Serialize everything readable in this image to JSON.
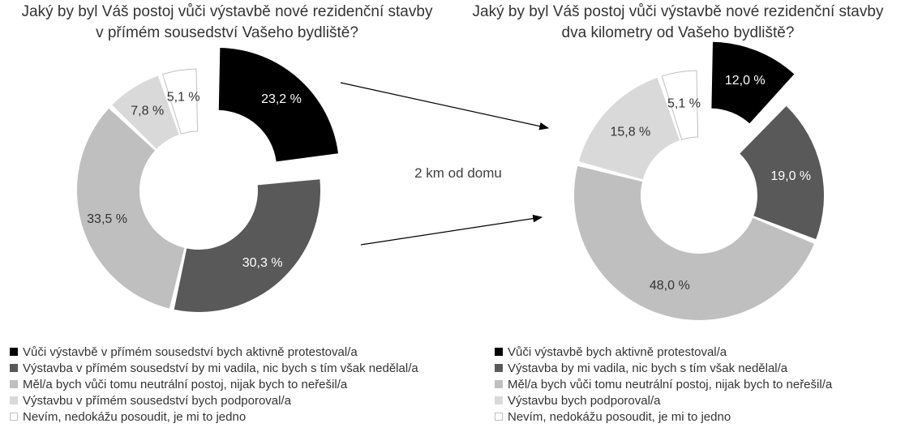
{
  "chart_data": [
    {
      "type": "donut",
      "title": "Jaký by byl Váš postoj vůči výstavbě nové rezidenční stavby\nv přímém sousedství Vašeho bydliště?",
      "slices": [
        {
          "label": "Vůči výstavbě v přímém sousedství bych aktivně protestoval/a",
          "value": 23.2,
          "value_label": "23,2 %",
          "color": "#000000",
          "exploded": true
        },
        {
          "label": "Výstavba v přímém sousedství by mi vadila, nic bych s tím však nedělal/a",
          "value": 30.3,
          "value_label": "30,3 %",
          "color": "#595959"
        },
        {
          "label": "Měl/a bych vůči tomu neutrální postoj, nijak bych to neřešil/a",
          "value": 33.5,
          "value_label": "33,5 %",
          "color": "#bfbfbf"
        },
        {
          "label": "Výstavbu v přímém sousedství bych podporoval/a",
          "value": 7.8,
          "value_label": "7,8 %",
          "color": "#d9d9d9"
        },
        {
          "label": "Nevím, nedokážu posoudit, je mi to jedno",
          "value": 5.1,
          "value_label": "5,1 %",
          "color": "#ffffff"
        }
      ]
    },
    {
      "type": "donut",
      "title": "Jaký by byl Váš postoj vůči výstavbě nové rezidenční stavby\ndva kilometry od Vašeho bydliště?",
      "slices": [
        {
          "label": "Vůči výstavbě bych aktivně protestoval/a",
          "value": 12.0,
          "value_label": "12,0 %",
          "color": "#000000",
          "exploded": true
        },
        {
          "label": "Výstavba by mi vadila, nic bych s tím však nedělal/a",
          "value": 19.0,
          "value_label": "19,0 %",
          "color": "#595959"
        },
        {
          "label": "Měl/a bych vůči tomu neutrální postoj, nijak bych to neřešil/a",
          "value": 48.0,
          "value_label": "48,0 %",
          "color": "#bfbfbf"
        },
        {
          "label": "Výstavbu bych podporoval/a",
          "value": 15.8,
          "value_label": "15,8 %",
          "color": "#d9d9d9"
        },
        {
          "label": "Nevím, nedokážu posoudit, je mi to jedno",
          "value": 5.1,
          "value_label": "5,1 %",
          "color": "#ffffff"
        }
      ]
    }
  ],
  "annotation": "2 km od domu"
}
